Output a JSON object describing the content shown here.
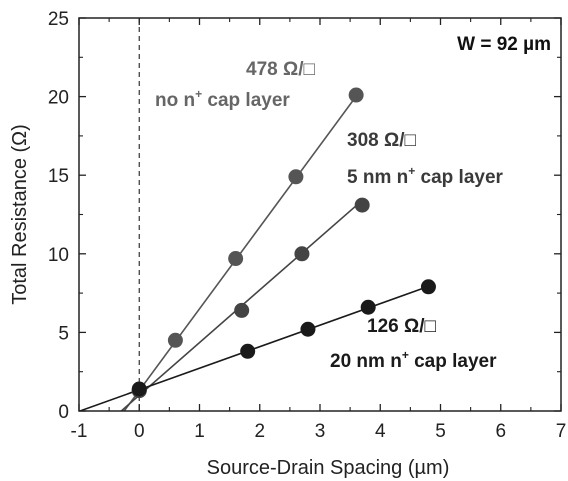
{
  "chart_data": {
    "type": "scatter",
    "xlabel_prefix": "Source-Drain Spacing (",
    "xlabel_unit": "µm",
    "xlabel_suffix": ")",
    "ylabel_prefix": "Total Resistance (",
    "ylabel_unit": "Ω",
    "ylabel_suffix": ")",
    "xlim": [
      -1,
      7
    ],
    "ylim": [
      0,
      25
    ],
    "xticks": [
      -1,
      0,
      1,
      2,
      3,
      4,
      5,
      6,
      7
    ],
    "yticks": [
      0,
      5,
      10,
      15,
      20,
      25
    ],
    "grid": false,
    "reference_line_x": 0,
    "width_label": "W = 92 µm",
    "series": [
      {
        "sheet_resistance": "478 Ω/□",
        "label_prefix": "no n",
        "label_sup": "+",
        "label_suffix": " cap layer",
        "color": "#555555",
        "text_color": "#666666",
        "points": [
          [
            0,
            1.3
          ],
          [
            0.6,
            4.5
          ],
          [
            1.6,
            9.7
          ],
          [
            2.6,
            14.9
          ],
          [
            3.6,
            20.1
          ]
        ],
        "fit": {
          "slope": 5.2,
          "intercept": 1.3,
          "x_start": -0.25,
          "x_end": 3.6
        }
      },
      {
        "sheet_resistance": "308 Ω/□",
        "label_prefix": "5 nm n",
        "label_sup": "+",
        "label_suffix": " cap layer",
        "color": "#444444",
        "text_color": "#3a3a3a",
        "points": [
          [
            0,
            1.3
          ],
          [
            1.7,
            6.4
          ],
          [
            2.7,
            10.0
          ],
          [
            3.7,
            13.1
          ]
        ],
        "fit": {
          "slope": 3.35,
          "intercept": 1.0,
          "x_start": -0.3,
          "x_end": 3.7
        }
      },
      {
        "sheet_resistance": "126 Ω/□",
        "label_prefix": "20 nm n",
        "label_sup": "+",
        "label_suffix": " cap layer",
        "color": "#1a1a1a",
        "text_color": "#1a1a1a",
        "points": [
          [
            0,
            1.4
          ],
          [
            1.8,
            3.8
          ],
          [
            2.8,
            5.2
          ],
          [
            3.8,
            6.6
          ],
          [
            4.8,
            7.9
          ]
        ],
        "fit": {
          "slope": 1.37,
          "intercept": 1.35,
          "x_start": -1.0,
          "x_end": 4.8
        }
      }
    ]
  }
}
